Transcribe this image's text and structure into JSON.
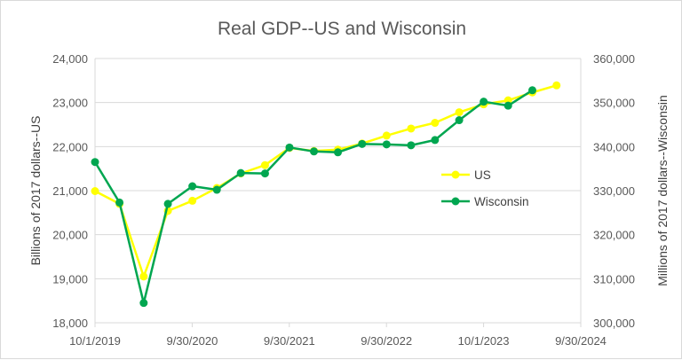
{
  "chart_data": {
    "type": "line",
    "title": "Real GDP--US and Wisconsin",
    "ylabel_left": "Billions of 2017 dollars--US",
    "ylabel_right": "Millions of 2017 dollars--Wisconsin",
    "x_tick_labels": [
      "10/1/2019",
      "9/30/2020",
      "9/30/2021",
      "9/30/2022",
      "10/1/2023",
      "9/30/2024"
    ],
    "x": [
      "2019-10-01",
      "2020-01-01",
      "2020-04-01",
      "2020-07-01",
      "2020-10-01",
      "2021-01-01",
      "2021-04-01",
      "2021-07-01",
      "2021-10-01",
      "2022-01-01",
      "2022-04-01",
      "2022-07-01",
      "2022-10-01",
      "2023-01-01",
      "2023-04-01",
      "2023-07-01",
      "2023-10-01",
      "2024-01-01",
      "2024-04-01",
      "2024-07-01"
    ],
    "ylim_left": [
      18000,
      24000
    ],
    "ylim_right": [
      300000,
      360000
    ],
    "y_ticks_left": [
      "18,000",
      "19,000",
      "20,000",
      "21,000",
      "22,000",
      "23,000",
      "24,000"
    ],
    "y_ticks_right": [
      "300,000",
      "310,000",
      "320,000",
      "330,000",
      "340,000",
      "350,000",
      "360,000"
    ],
    "series": [
      {
        "name": "US",
        "axis": "left",
        "color": "#ffff00",
        "values": [
          20990,
          20700,
          19050,
          20540,
          20770,
          21060,
          21390,
          21580,
          21970,
          21900,
          21930,
          22070,
          22250,
          22410,
          22540,
          22780,
          22960,
          23050,
          23230,
          23390
        ]
      },
      {
        "name": "Wisconsin",
        "axis": "right",
        "color": "#00a650",
        "values": [
          336500,
          327300,
          304500,
          327000,
          331000,
          330200,
          334000,
          333900,
          339800,
          338900,
          338700,
          340600,
          340500,
          340300,
          341500,
          346000,
          350200,
          349300,
          352800,
          null
        ]
      }
    ],
    "legend_position": "right-middle",
    "grid": "horizontal",
    "axis_color": "#d9d9d9"
  }
}
